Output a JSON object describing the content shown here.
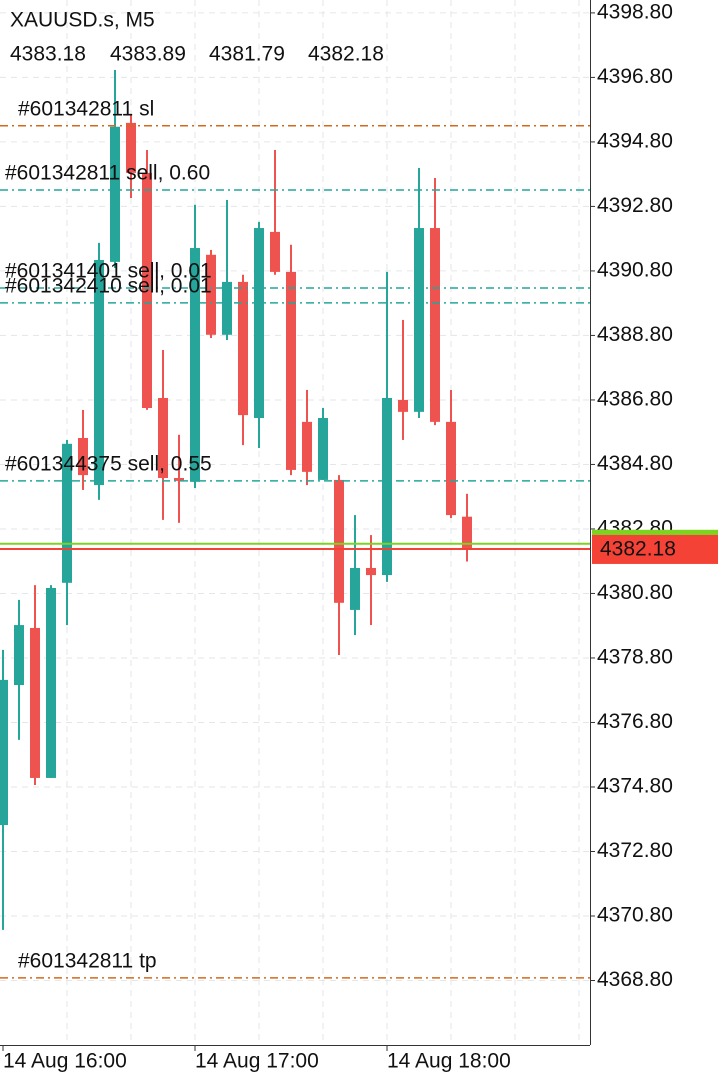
{
  "chart_data": {
    "type": "candlestick",
    "symbol": "XAUUSD.s, M5",
    "ohlc": [
      4383.18,
      4383.89,
      4381.79,
      4382.18
    ],
    "categories": [
      "14 Aug 16:00",
      null,
      null,
      null,
      null,
      null,
      null,
      null,
      null,
      null,
      null,
      null,
      "14 Aug 17:00",
      null,
      null,
      null,
      null,
      null,
      null,
      null,
      null,
      null,
      null,
      null,
      "14 Aug 18:00",
      null,
      null,
      null,
      null,
      null
    ],
    "open": [
      4373.62,
      4377.96,
      4379.73,
      4375.08,
      4381.13,
      4385.62,
      4384.16,
      4391.08,
      4395.39,
      4393.84,
      4386.86,
      4384.38,
      4384.26,
      4391.3,
      4388.82,
      4390.46,
      4386.24,
      4392.01,
      4390.77,
      4386.12,
      4384.32,
      4384.32,
      4380.29,
      4381.59,
      4381.37,
      4386.8,
      4386.43,
      4392.13,
      4386.12,
      4383.18
    ],
    "high": [
      4379.05,
      4380.6,
      4381.06,
      4381.06,
      4385.56,
      4386.49,
      4391.67,
      4397.03,
      4395.64,
      4394.55,
      4388.35,
      4385.72,
      4392.85,
      4391.45,
      4393.0,
      4390.68,
      4392.32,
      4394.55,
      4391.61,
      4387.11,
      4386.55,
      4384.47,
      4383.23,
      4382.61,
      4390.77,
      4389.28,
      4393.99,
      4393.68,
      4387.11,
      4383.89
    ],
    "low": [
      4370.37,
      4376.26,
      4374.86,
      4375.08,
      4379.82,
      4384.01,
      4383.7,
      4390.89,
      4393.06,
      4386.49,
      4383.08,
      4382.99,
      4384.07,
      4388.72,
      4388.66,
      4385.4,
      4385.31,
      4390.68,
      4384.47,
      4384.16,
      4384.32,
      4378.89,
      4379.51,
      4379.82,
      4381.16,
      4385.56,
      4386.24,
      4386.02,
      4383.14,
      4381.79
    ],
    "close": [
      4378.12,
      4379.82,
      4375.08,
      4380.97,
      4385.44,
      4384.47,
      4391.14,
      4395.27,
      4393.84,
      4386.55,
      4384.38,
      4384.29,
      4391.51,
      4388.82,
      4390.46,
      4386.33,
      4392.13,
      4390.77,
      4384.63,
      4384.57,
      4386.24,
      4380.51,
      4381.59,
      4381.37,
      4386.86,
      4386.43,
      4392.13,
      4386.12,
      4383.23,
      4382.18
    ],
    "up_color": "#26a69a",
    "down_color": "#ef5350",
    "ylim": [
      4366.8,
      4399.2
    ],
    "yticks": [
      {
        "value": 4398.8,
        "label": "4398.80"
      },
      {
        "value": 4396.8,
        "label": "4396.80"
      },
      {
        "value": 4394.8,
        "label": "4394.80"
      },
      {
        "value": 4392.8,
        "label": "4392.80"
      },
      {
        "value": 4390.8,
        "label": "4390.80"
      },
      {
        "value": 4388.8,
        "label": "4388.80"
      },
      {
        "value": 4386.8,
        "label": "4386.80"
      },
      {
        "value": 4384.8,
        "label": "4384.80"
      },
      {
        "value": 4382.8,
        "label": "4382.80"
      },
      {
        "value": 4380.8,
        "label": "4380.80"
      },
      {
        "value": 4378.8,
        "label": "4378.80"
      },
      {
        "value": 4376.8,
        "label": "4376.80"
      },
      {
        "value": 4374.8,
        "label": "4374.80"
      },
      {
        "value": 4372.8,
        "label": "4372.80"
      },
      {
        "value": 4370.8,
        "label": "4370.80"
      },
      {
        "value": 4368.8,
        "label": "4368.80"
      }
    ],
    "grid": true,
    "order_lines": [
      {
        "label": "#601342811 sl",
        "value": 4395.3,
        "color": "#d2691e"
      },
      {
        "label": "#601342811 sell, 0.60",
        "value": 4393.31,
        "color": "#26a69a"
      },
      {
        "label": "#601341401 sell, 0.01",
        "value": 4390.27,
        "color": "#26a69a"
      },
      {
        "label": "#601342410 sell, 0.01",
        "value": 4389.81,
        "color": "#26a69a"
      },
      {
        "label": "#601344375 sell, 0.55",
        "value": 4384.29,
        "color": "#26a69a"
      },
      {
        "label": "#601342811 tp",
        "value": 4368.88,
        "color": "#d2691e"
      }
    ],
    "ask": {
      "value": 4382.34,
      "color": "#7ed321"
    },
    "last_price": {
      "value": 4382.18,
      "color": "#f44336"
    }
  }
}
